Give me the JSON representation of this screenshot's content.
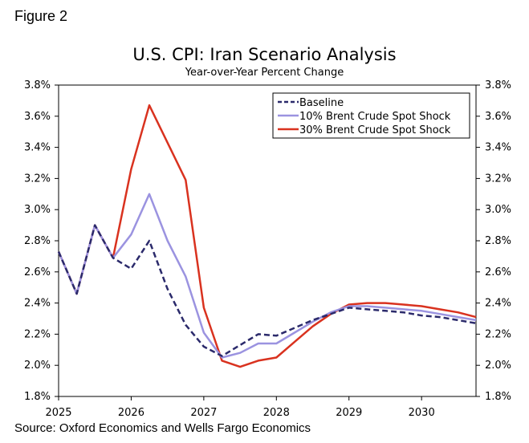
{
  "figure_label": "Figure 2",
  "source": "Source: Oxford Economics and Wells Fargo Economics",
  "chart_data": {
    "type": "line",
    "title": "U.S. CPI: Iran Scenario Analysis",
    "subtitle": "Year-over-Year Percent Change",
    "xlabel": "",
    "ylabel": "",
    "x_ticks": [
      "2025",
      "2026",
      "2027",
      "2028",
      "2029",
      "2030"
    ],
    "xlim": [
      2025.0,
      2030.75
    ],
    "ylim": [
      1.8,
      3.8
    ],
    "y_ticks": [
      "1.8%",
      "2.0%",
      "2.2%",
      "2.4%",
      "2.6%",
      "2.8%",
      "3.0%",
      "3.2%",
      "3.4%",
      "3.6%",
      "3.8%"
    ],
    "legend_position": "top-right",
    "x": [
      2025.0,
      2025.25,
      2025.5,
      2025.75,
      2026.0,
      2026.25,
      2026.5,
      2026.75,
      2027.0,
      2027.25,
      2027.5,
      2027.75,
      2028.0,
      2028.25,
      2028.5,
      2028.75,
      2029.0,
      2029.25,
      2029.5,
      2029.75,
      2030.0,
      2030.25,
      2030.5,
      2030.75
    ],
    "series": [
      {
        "name": "Baseline",
        "color": "#2b2a6b",
        "dash": true,
        "values": [
          2.73,
          2.46,
          2.9,
          2.69,
          2.62,
          2.8,
          2.49,
          2.26,
          2.12,
          2.06,
          2.13,
          2.2,
          2.19,
          2.24,
          2.29,
          2.33,
          2.37,
          2.36,
          2.35,
          2.34,
          2.32,
          2.31,
          2.29,
          2.27
        ]
      },
      {
        "name": "10% Brent Crude Spot Shock",
        "color": "#9b93e0",
        "dash": false,
        "values": [
          2.73,
          2.46,
          2.9,
          2.69,
          2.84,
          3.1,
          2.8,
          2.57,
          2.21,
          2.05,
          2.08,
          2.14,
          2.14,
          2.21,
          2.28,
          2.34,
          2.38,
          2.38,
          2.37,
          2.36,
          2.35,
          2.33,
          2.31,
          2.29
        ]
      },
      {
        "name": "30% Brent Crude Spot Shock",
        "color": "#d9321f",
        "dash": false,
        "values": [
          2.73,
          2.46,
          2.9,
          2.69,
          3.26,
          3.67,
          3.43,
          3.19,
          2.37,
          2.03,
          1.99,
          2.03,
          2.05,
          2.15,
          2.25,
          2.33,
          2.39,
          2.4,
          2.4,
          2.39,
          2.38,
          2.36,
          2.34,
          2.31
        ]
      }
    ]
  }
}
